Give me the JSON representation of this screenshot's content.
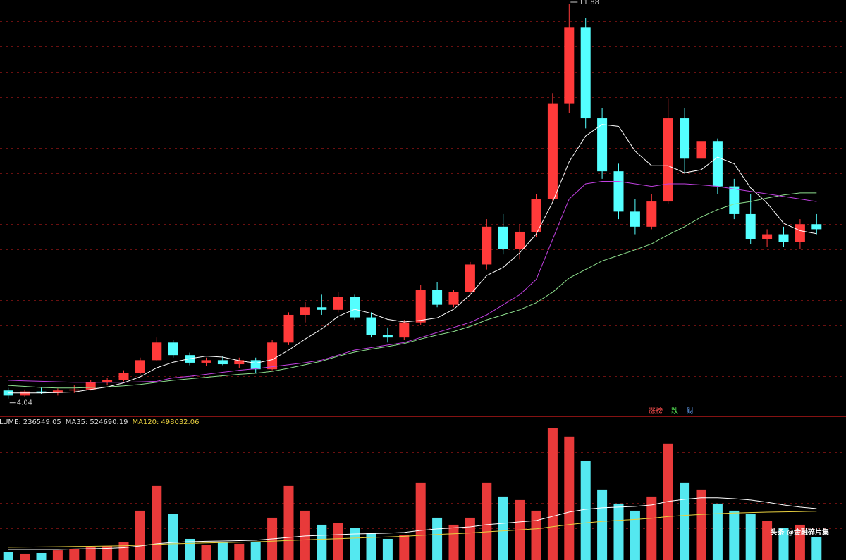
{
  "chart_data": {
    "type": "candlestick",
    "ylim": [
      3.7,
      11.95
    ],
    "volume_ylim": [
      0,
      1460000
    ],
    "up_color": "#ff3a3a",
    "down_color": "#54ffff",
    "open": [
      4.2,
      4.1,
      4.18,
      4.15,
      4.2,
      4.22,
      4.36,
      4.4,
      4.55,
      4.8,
      5.15,
      4.9,
      4.75,
      4.8,
      4.72,
      4.8,
      4.62,
      5.15,
      5.7,
      5.85,
      5.8,
      6.05,
      5.65,
      5.3,
      5.25,
      5.55,
      6.2,
      5.9,
      6.15,
      6.7,
      7.45,
      7.0,
      7.35,
      8.0,
      9.9,
      11.4,
      9.6,
      8.55,
      7.75,
      7.45,
      7.95,
      9.6,
      8.8,
      9.15,
      8.25,
      7.7,
      7.2,
      7.3,
      7.15,
      7.5
    ],
    "high": [
      4.25,
      4.22,
      4.25,
      4.24,
      4.3,
      4.4,
      4.45,
      4.6,
      4.85,
      5.25,
      5.2,
      4.95,
      4.85,
      4.88,
      4.85,
      4.85,
      5.2,
      5.75,
      5.95,
      6.1,
      6.15,
      6.1,
      5.75,
      5.45,
      5.6,
      6.3,
      6.35,
      6.2,
      6.75,
      7.6,
      7.7,
      7.5,
      8.1,
      10.1,
      11.88,
      11.6,
      9.8,
      8.7,
      8.0,
      8.1,
      10.0,
      9.8,
      9.3,
      9.2,
      8.4,
      8.1,
      7.4,
      7.45,
      7.6,
      7.7
    ],
    "low": [
      4.04,
      4.08,
      4.12,
      4.1,
      4.15,
      4.2,
      4.3,
      4.38,
      4.52,
      4.78,
      4.85,
      4.7,
      4.68,
      4.7,
      4.65,
      4.55,
      4.6,
      5.1,
      5.55,
      5.7,
      5.75,
      5.6,
      5.25,
      5.15,
      5.2,
      5.5,
      5.85,
      5.85,
      6.1,
      6.6,
      6.9,
      6.8,
      7.25,
      7.95,
      9.7,
      9.4,
      8.4,
      7.6,
      7.3,
      7.4,
      7.9,
      8.5,
      8.4,
      8.1,
      7.6,
      7.1,
      7.05,
      7.05,
      7.0,
      7.3
    ],
    "close": [
      4.1,
      4.18,
      4.15,
      4.2,
      4.22,
      4.36,
      4.4,
      4.55,
      4.8,
      5.15,
      4.9,
      4.75,
      4.8,
      4.72,
      4.8,
      4.62,
      5.15,
      5.7,
      5.85,
      5.8,
      6.05,
      5.65,
      5.3,
      5.25,
      5.55,
      6.2,
      5.9,
      6.15,
      6.7,
      7.45,
      7.0,
      7.35,
      8.0,
      9.9,
      11.4,
      9.6,
      8.55,
      7.75,
      7.45,
      7.95,
      9.6,
      8.8,
      9.15,
      8.25,
      7.7,
      7.2,
      7.3,
      7.15,
      7.5,
      7.4
    ],
    "ma_series": [
      {
        "color": "#ffffff",
        "values": [
          4.15,
          4.15,
          4.15,
          4.16,
          4.17,
          4.22,
          4.27,
          4.35,
          4.47,
          4.65,
          4.76,
          4.83,
          4.88,
          4.86,
          4.79,
          4.74,
          4.81,
          5.0,
          5.22,
          5.42,
          5.67,
          5.81,
          5.73,
          5.61,
          5.56,
          5.59,
          5.64,
          5.81,
          6.1,
          6.48,
          6.64,
          6.93,
          7.3,
          7.94,
          8.74,
          9.25,
          9.48,
          9.44,
          8.95,
          8.66,
          8.66,
          8.52,
          8.58,
          8.83,
          8.7,
          8.22,
          7.92,
          7.52,
          7.37,
          7.31
        ]
      },
      {
        "color": "#8ee08e",
        "values": [
          4.3,
          4.28,
          4.26,
          4.25,
          4.25,
          4.26,
          4.27,
          4.29,
          4.32,
          4.36,
          4.4,
          4.43,
          4.46,
          4.49,
          4.52,
          4.54,
          4.58,
          4.64,
          4.71,
          4.78,
          4.88,
          4.96,
          5.02,
          5.07,
          5.13,
          5.22,
          5.3,
          5.37,
          5.47,
          5.6,
          5.7,
          5.8,
          5.94,
          6.15,
          6.43,
          6.6,
          6.77,
          6.88,
          6.99,
          7.11,
          7.29,
          7.45,
          7.64,
          7.79,
          7.9,
          7.95,
          8.02,
          8.08,
          8.12,
          8.12
        ]
      },
      {
        "color": "#c040e0",
        "values": [
          4.4,
          4.39,
          4.38,
          4.37,
          4.36,
          4.36,
          4.36,
          4.36,
          4.37,
          4.38,
          4.45,
          4.48,
          4.52,
          4.56,
          4.6,
          4.63,
          4.67,
          4.71,
          4.75,
          4.8,
          4.9,
          5.0,
          5.05,
          5.1,
          5.15,
          5.25,
          5.35,
          5.45,
          5.55,
          5.7,
          5.9,
          6.1,
          6.4,
          7.2,
          8.0,
          8.3,
          8.35,
          8.35,
          8.3,
          8.25,
          8.3,
          8.3,
          8.28,
          8.25,
          8.2,
          8.15,
          8.1,
          8.05,
          8.0,
          7.95
        ]
      }
    ],
    "volume": [
      86000,
      65000,
      72000,
      100000,
      115000,
      130000,
      144000,
      187000,
      504000,
      756000,
      468000,
      216000,
      158000,
      180000,
      166000,
      187000,
      432000,
      756000,
      504000,
      360000,
      374000,
      324000,
      274000,
      216000,
      252000,
      792000,
      432000,
      360000,
      432000,
      792000,
      648000,
      612000,
      504000,
      1346000,
      1260000,
      1008000,
      720000,
      576000,
      504000,
      648000,
      1188000,
      792000,
      720000,
      576000,
      504000,
      468000,
      396000,
      324000,
      360000,
      236549.05
    ],
    "volume_ma": [
      {
        "color": "#ffffff",
        "values": [
          108000,
          108000,
          108000,
          108000,
          112000,
          115000,
          119000,
          126000,
          144000,
          166000,
          180000,
          187000,
          191000,
          194000,
          198000,
          202000,
          216000,
          230000,
          245000,
          252000,
          259000,
          266000,
          270000,
          274000,
          281000,
          302000,
          317000,
          328000,
          338000,
          360000,
          374000,
          389000,
          403000,
          446000,
          490000,
          518000,
          533000,
          540000,
          547000,
          562000,
          598000,
          619000,
          634000,
          634000,
          626000,
          612000,
          590000,
          562000,
          540000,
          524690.19
        ]
      },
      {
        "color": "#e8d040",
        "values": [
          130000,
          132000,
          134000,
          136000,
          138000,
          140000,
          143000,
          146000,
          152000,
          160000,
          166000,
          170000,
          174000,
          178000,
          182000,
          186000,
          192000,
          200000,
          206000,
          212000,
          218000,
          224000,
          230000,
          236000,
          242000,
          252000,
          260000,
          268000,
          276000,
          288000,
          298000,
          308000,
          318000,
          340000,
          362000,
          380000,
          394000,
          404000,
          414000,
          426000,
          444000,
          456000,
          466000,
          474000,
          480000,
          485000,
          489000,
          492000,
          495000,
          498032.06
        ]
      }
    ],
    "volume_header": {
      "volume_label": "LUME:",
      "ma35_label": "MA35:",
      "ma120_label": "MA120:"
    },
    "tags": [
      {
        "text": "涨榜",
        "color": "#ff5050"
      },
      {
        "text": "跌",
        "color": "#60ff60"
      },
      {
        "text": "财",
        "color": "#6aa8ff"
      }
    ],
    "watermark": "头条 @金融碎片集"
  }
}
